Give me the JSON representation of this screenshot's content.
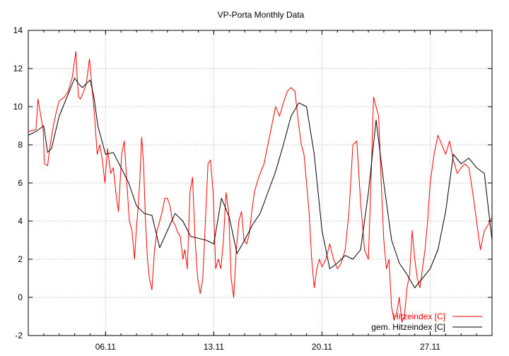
{
  "chart_data": {
    "type": "line",
    "title": "VP-Porta Monthly Data",
    "xlabel": "",
    "ylabel": "",
    "xlim": [
      "2010-11-01",
      "2010-12-01"
    ],
    "ylim": [
      -2,
      14
    ],
    "yticks": [
      -2,
      0,
      2,
      4,
      6,
      8,
      10,
      12,
      14
    ],
    "xticks": [
      {
        "date": "2010-11-06",
        "label": "06.11"
      },
      {
        "date": "2010-11-13",
        "label": "13.11"
      },
      {
        "date": "2010-11-20",
        "label": "20.11"
      },
      {
        "date": "2010-11-27",
        "label": "27.11"
      }
    ],
    "grid": true,
    "legend": "bottom-right",
    "series": [
      {
        "name": "Hitzeindex [C]",
        "color": "#ff0000",
        "x": [
          "2010-11-01 00:00",
          "2010-11-01 12:00",
          "2010-11-01 15:00",
          "2010-11-01 23:00",
          "2010-11-02 01:00",
          "2010-11-02 06:00",
          "2010-11-02 10:00",
          "2010-11-02 15:00",
          "2010-11-02 20:00",
          "2010-11-03 00:00",
          "2010-11-03 08:00",
          "2010-11-03 14:00",
          "2010-11-03 20:00",
          "2010-11-04 02:00",
          "2010-11-04 04:00",
          "2010-11-04 06:00",
          "2010-11-04 09:00",
          "2010-11-04 14:00",
          "2010-11-04 18:00",
          "2010-11-04 23:00",
          "2010-11-05 03:00",
          "2010-11-05 07:00",
          "2010-11-05 11:00",
          "2010-11-05 15:00",
          "2010-11-05 19:00",
          "2010-11-05 23:00",
          "2010-11-06 03:00",
          "2010-11-06 08:00",
          "2010-11-06 12:00",
          "2010-11-06 16:00",
          "2010-11-06 20:00",
          "2010-11-07 01:00",
          "2010-11-07 05:00",
          "2010-11-07 09:00",
          "2010-11-07 13:00",
          "2010-11-07 17:00",
          "2010-11-07 21:00",
          "2010-11-08 00:00",
          "2010-11-08 02:00",
          "2010-11-08 05:00",
          "2010-11-08 08:00",
          "2010-11-08 11:00",
          "2010-11-08 14:00",
          "2010-11-08 17:00",
          "2010-11-08 20:00",
          "2010-11-09 00:00",
          "2010-11-09 04:00",
          "2010-11-09 08:00",
          "2010-11-09 12:00",
          "2010-11-09 16:00",
          "2010-11-09 20:00",
          "2010-11-10 00:00",
          "2010-11-10 04:00",
          "2010-11-10 08:00",
          "2010-11-10 12:00",
          "2010-11-10 16:00",
          "2010-11-10 20:00",
          "2010-11-11 00:00",
          "2010-11-11 03:00",
          "2010-11-11 07:00",
          "2010-11-11 11:00",
          "2010-11-11 15:00",
          "2010-11-11 19:00",
          "2010-11-11 23:00",
          "2010-11-12 03:00",
          "2010-11-12 07:00",
          "2010-11-12 11:00",
          "2010-11-12 15:00",
          "2010-11-12 19:00",
          "2010-11-12 23:00",
          "2010-11-13 03:00",
          "2010-11-13 07:00",
          "2010-11-13 11:00",
          "2010-11-13 15:00",
          "2010-11-13 19:00",
          "2010-11-13 23:00",
          "2010-11-14 03:00",
          "2010-11-14 07:00",
          "2010-11-14 11:00",
          "2010-11-14 15:00",
          "2010-11-14 19:00",
          "2010-11-14 23:00",
          "2010-11-15 03:00",
          "2010-11-15 07:00",
          "2010-11-15 11:00",
          "2010-11-15 15:00",
          "2010-11-15 19:00",
          "2010-11-16 00:00",
          "2010-11-16 06:00",
          "2010-11-16 12:00",
          "2010-11-16 18:00",
          "2010-11-17 00:00",
          "2010-11-17 06:00",
          "2010-11-17 12:00",
          "2010-11-17 18:00",
          "2010-11-18 00:00",
          "2010-11-18 06:00",
          "2010-11-18 12:00",
          "2010-11-18 16:00",
          "2010-11-18 20:00",
          "2010-11-19 00:00",
          "2010-11-19 04:00",
          "2010-11-19 08:00",
          "2010-11-19 12:00",
          "2010-11-19 16:00",
          "2010-11-19 20:00",
          "2010-11-20 00:00",
          "2010-11-20 06:00",
          "2010-11-20 12:00",
          "2010-11-20 18:00",
          "2010-11-21 00:00",
          "2010-11-21 06:00",
          "2010-11-21 12:00",
          "2010-11-21 18:00",
          "2010-11-22 00:00",
          "2010-11-22 06:00",
          "2010-11-22 12:00",
          "2010-11-22 18:00",
          "2010-11-23 00:00",
          "2010-11-23 04:00",
          "2010-11-23 08:00",
          "2010-11-23 12:00",
          "2010-11-23 16:00",
          "2010-11-23 20:00",
          "2010-11-24 00:00",
          "2010-11-24 04:00",
          "2010-11-24 08:00",
          "2010-11-24 12:00",
          "2010-11-24 16:00",
          "2010-11-24 20:00",
          "2010-11-25 00:00",
          "2010-11-25 04:00",
          "2010-11-25 08:00",
          "2010-11-25 12:00",
          "2010-11-25 16:00",
          "2010-11-25 20:00",
          "2010-11-26 00:00",
          "2010-11-26 04:00",
          "2010-11-26 08:00",
          "2010-11-26 12:00",
          "2010-11-26 16:00",
          "2010-11-26 20:00",
          "2010-11-27 00:00",
          "2010-11-27 06:00",
          "2010-11-27 12:00",
          "2010-11-27 18:00",
          "2010-11-28 00:00",
          "2010-11-28 06:00",
          "2010-11-28 12:00",
          "2010-11-28 18:00",
          "2010-11-29 00:00",
          "2010-11-29 06:00",
          "2010-11-29 12:00",
          "2010-11-29 18:00",
          "2010-11-30 00:00",
          "2010-11-30 06:00",
          "2010-11-30 12:00",
          "2010-11-30 18:00",
          "2010-12-01 00:00"
        ],
        "values": [
          8.7,
          8.8,
          10.4,
          8.8,
          7.0,
          6.9,
          8.0,
          9.0,
          9.8,
          10.3,
          10.5,
          10.8,
          11.5,
          12.9,
          11.5,
          10.5,
          10.4,
          10.8,
          11.2,
          12.5,
          11.0,
          9.5,
          7.5,
          8.0,
          7.2,
          6.0,
          7.8,
          6.5,
          6.8,
          5.5,
          4.5,
          7.5,
          8.2,
          6.0,
          4.0,
          3.5,
          2.0,
          3.7,
          4.5,
          6.0,
          8.4,
          7.0,
          4.0,
          2.0,
          1.0,
          0.4,
          2.5,
          3.5,
          4.0,
          4.5,
          5.2,
          5.2,
          4.8,
          4.0,
          3.8,
          3.4,
          3.2,
          2.0,
          2.5,
          1.5,
          5.5,
          6.3,
          3.0,
          1.0,
          0.2,
          1.0,
          4.0,
          7.0,
          7.2,
          5.5,
          1.5,
          2.0,
          1.5,
          3.0,
          5.5,
          4.5,
          1.0,
          0.0,
          2.5,
          4.0,
          4.5,
          3.0,
          2.8,
          3.3,
          4.5,
          5.5,
          6.0,
          6.5,
          7.0,
          8.0,
          9.0,
          10.0,
          9.5,
          10.2,
          10.8,
          11.0,
          10.8,
          9.0,
          8.0,
          7.5,
          6.0,
          4.5,
          2.0,
          0.5,
          1.5,
          2.0,
          1.6,
          2.0,
          2.8,
          2.0,
          1.5,
          1.8,
          2.5,
          4.5,
          8.0,
          8.2,
          5.0,
          2.5,
          2.0,
          6.0,
          10.5,
          10.0,
          9.5,
          6.0,
          3.0,
          1.5,
          2.0,
          -0.5,
          -1.2,
          -0.8,
          0.0,
          -1.3,
          -1.0,
          0.5,
          1.2,
          3.5,
          2.0,
          1.0,
          0.5,
          1.5,
          2.5,
          4.0,
          6.0,
          7.5,
          8.5,
          8.0,
          7.5,
          8.2,
          7.2,
          6.5,
          6.8,
          7.0,
          6.8,
          5.5,
          4.0,
          2.5,
          3.5,
          3.8,
          4.2
        ]
      },
      {
        "name": "gem. Hitzeindex [C]",
        "color": "#000000",
        "x": [
          "2010-11-01 00:00",
          "2010-11-01 12:00",
          "2010-11-02 00:00",
          "2010-11-02 06:00",
          "2010-11-02 12:00",
          "2010-11-03 00:00",
          "2010-11-03 12:00",
          "2010-11-04 00:00",
          "2010-11-04 06:00",
          "2010-11-04 12:00",
          "2010-11-05 00:00",
          "2010-11-05 06:00",
          "2010-11-05 12:00",
          "2010-11-06 00:00",
          "2010-11-06 12:00",
          "2010-11-07 00:00",
          "2010-11-07 12:00",
          "2010-11-08 00:00",
          "2010-11-08 12:00",
          "2010-11-09 00:00",
          "2010-11-09 12:00",
          "2010-11-10 00:00",
          "2010-11-10 12:00",
          "2010-11-11 00:00",
          "2010-11-11 12:00",
          "2010-11-12 00:00",
          "2010-11-12 12:00",
          "2010-11-13 00:00",
          "2010-11-13 12:00",
          "2010-11-14 00:00",
          "2010-11-14 12:00",
          "2010-11-15 00:00",
          "2010-11-15 12:00",
          "2010-11-16 00:00",
          "2010-11-16 12:00",
          "2010-11-17 00:00",
          "2010-11-17 12:00",
          "2010-11-18 00:00",
          "2010-11-18 12:00",
          "2010-11-19 00:00",
          "2010-11-19 12:00",
          "2010-11-20 00:00",
          "2010-11-20 12:00",
          "2010-11-21 00:00",
          "2010-11-21 12:00",
          "2010-11-22 00:00",
          "2010-11-22 12:00",
          "2010-11-23 00:00",
          "2010-11-23 12:00",
          "2010-11-24 00:00",
          "2010-11-24 12:00",
          "2010-11-25 00:00",
          "2010-11-25 12:00",
          "2010-11-26 00:00",
          "2010-11-26 12:00",
          "2010-11-27 00:00",
          "2010-11-27 12:00",
          "2010-11-28 00:00",
          "2010-11-28 12:00",
          "2010-11-29 00:00",
          "2010-11-29 12:00",
          "2010-11-30 00:00",
          "2010-11-30 12:00",
          "2010-12-01 00:00"
        ],
        "values": [
          8.5,
          8.7,
          9.0,
          7.6,
          7.8,
          9.5,
          10.5,
          11.5,
          11.2,
          11.0,
          11.4,
          10.5,
          9.0,
          7.5,
          7.6,
          6.8,
          6.0,
          4.8,
          4.4,
          4.3,
          2.6,
          3.5,
          4.4,
          4.0,
          3.2,
          3.1,
          3.0,
          2.8,
          5.2,
          4.2,
          2.3,
          3.0,
          3.8,
          4.4,
          5.5,
          6.6,
          8.0,
          9.5,
          10.2,
          10.0,
          7.5,
          3.5,
          1.5,
          1.8,
          2.2,
          2.0,
          2.5,
          5.5,
          9.3,
          6.0,
          3.0,
          1.8,
          1.2,
          0.5,
          1.0,
          1.5,
          2.5,
          4.5,
          7.5,
          7.0,
          7.3,
          6.8,
          6.5,
          3.0
        ]
      }
    ]
  }
}
